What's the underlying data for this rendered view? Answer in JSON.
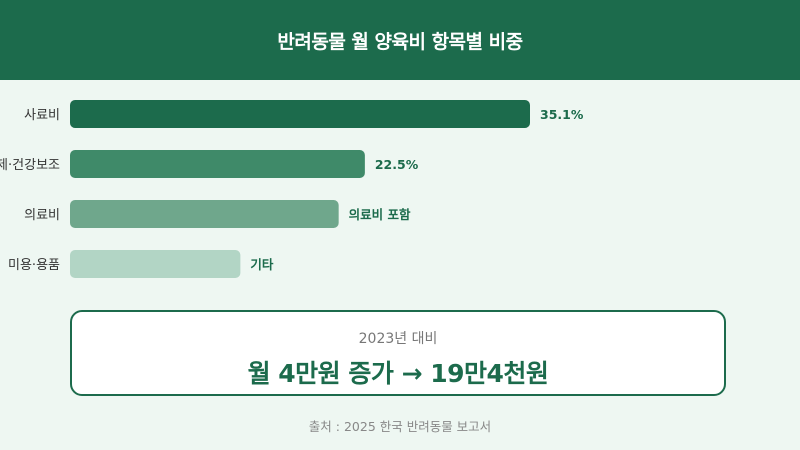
{
  "header": {
    "title": "반려동물 월 양육비 항목별 비중"
  },
  "chart_data": {
    "type": "bar",
    "orientation": "horizontal",
    "title": "반려동물 월 양육비 항목별 비중",
    "categories": [
      "사료비",
      "영양제·건강보조",
      "의료비",
      "미용·용품"
    ],
    "values": [
      35.1,
      22.5,
      20.5,
      13.0
    ],
    "value_labels": [
      "35.1%",
      "22.5%",
      "의료비 포함",
      "기타"
    ],
    "colors": [
      "#1c6b4c",
      "#3f8a69",
      "#6fa78c",
      "#b2d5c5"
    ],
    "xlim": [
      0,
      50
    ],
    "grid": false,
    "legend": "none"
  },
  "compare": {
    "subtitle": "2023년 대비",
    "main": "월 4만원 증가 → 19만4천원"
  },
  "source": "출처 : 2025 한국 반려동물 보고서"
}
